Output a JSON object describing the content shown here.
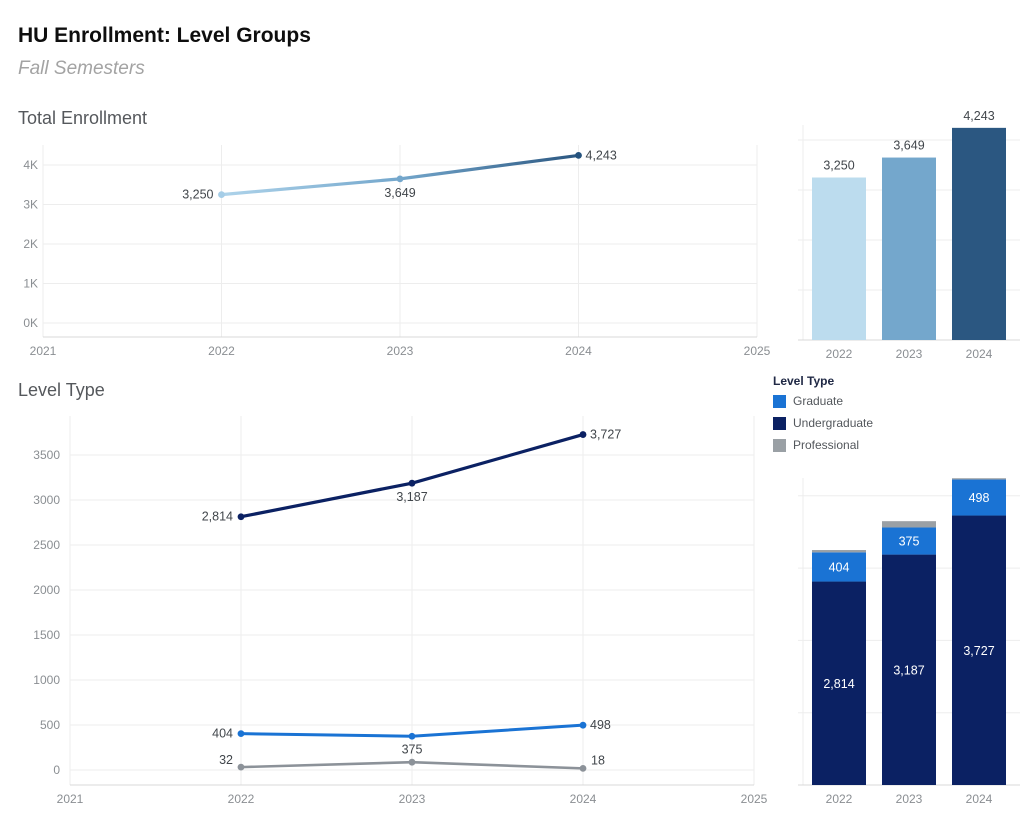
{
  "header": {
    "title": "HU Enrollment: Level Groups",
    "subtitle": "Fall Semesters"
  },
  "worksheets": {
    "total_title": "Total Enrollment",
    "level_title": "Level Type"
  },
  "legend": {
    "title": "Level Type",
    "items": [
      {
        "label": "Graduate",
        "color": "#1a73d4"
      },
      {
        "label": "Undergraduate",
        "color": "#0b2163"
      },
      {
        "label": "Professional",
        "color": "#9aa0a5"
      }
    ]
  },
  "colors": {
    "year_2022": "#bcdcee",
    "year_2023": "#74a7cc",
    "year_2024": "#2b5781",
    "graduate": "#1a73d4",
    "undergraduate": "#0b2163",
    "professional_line": "#8c9299",
    "professional_swatch": "#9aa0a5"
  },
  "chart_data": [
    {
      "id": "total-line",
      "type": "line",
      "title": "Total Enrollment",
      "x": [
        2022,
        2023,
        2024
      ],
      "series": [
        {
          "name": "Total Enrollment",
          "values": [
            3250,
            3649,
            4243
          ],
          "labels": [
            "3,250",
            "3,649",
            "4,243"
          ],
          "gradient": [
            "#aed3ea",
            "#74a7cc",
            "#2b5781"
          ],
          "point_colors": [
            "#a5cde7",
            "#74a7cc",
            "#24527d"
          ]
        }
      ],
      "xlim": [
        2021,
        2025
      ],
      "xticks": [
        "2021",
        "2022",
        "2023",
        "2024",
        "2025"
      ],
      "ylim": [
        0,
        4750
      ],
      "ytick_values": [
        0,
        1000,
        2000,
        3000,
        4000
      ],
      "ytick_labels": [
        "0K",
        "1K",
        "2K",
        "3K",
        "4K"
      ],
      "grid": true,
      "legend_position": "none"
    },
    {
      "id": "total-bar",
      "type": "bar",
      "categories": [
        "2022",
        "2023",
        "2024"
      ],
      "values": [
        3250,
        3649,
        4243
      ],
      "labels": [
        "3,250",
        "3,649",
        "4,243"
      ],
      "bar_colors": [
        "#bcdcee",
        "#74a7cc",
        "#2b5781"
      ],
      "ylim": [
        0,
        4900
      ],
      "gridline_step": 1000,
      "grid": true
    },
    {
      "id": "level-line",
      "type": "line",
      "title": "Level Type",
      "x": [
        2022,
        2023,
        2024
      ],
      "series": [
        {
          "name": "Undergraduate",
          "color": "#0b2163",
          "values": [
            2814,
            3187,
            3727
          ],
          "labels": [
            "2,814",
            "3,187",
            "3,727"
          ]
        },
        {
          "name": "Graduate",
          "color": "#1a73d4",
          "values": [
            404,
            375,
            498
          ],
          "labels": [
            "404",
            "375",
            "498"
          ]
        },
        {
          "name": "Professional",
          "color": "#8c9299",
          "values": [
            32,
            87,
            18
          ],
          "labels": [
            "32",
            "",
            "18"
          ]
        }
      ],
      "xlim": [
        2021,
        2025
      ],
      "xticks": [
        "2021",
        "2022",
        "2023",
        "2024",
        "2025"
      ],
      "ylim": [
        0,
        4000
      ],
      "ytick_values": [
        0,
        500,
        1000,
        1500,
        2000,
        2500,
        3000,
        3500
      ],
      "ytick_labels": [
        "0",
        "500",
        "1000",
        "1500",
        "2000",
        "2500",
        "3000",
        "3500"
      ],
      "grid": true,
      "legend_position": "right"
    },
    {
      "id": "level-stacked",
      "type": "stacked-bar",
      "categories": [
        "2022",
        "2023",
        "2024"
      ],
      "series": [
        {
          "name": "Undergraduate",
          "color": "#0b2163",
          "values": [
            2814,
            3187,
            3727
          ],
          "labels": [
            "2,814",
            "3,187",
            "3,727"
          ]
        },
        {
          "name": "Graduate",
          "color": "#1a73d4",
          "values": [
            404,
            375,
            498
          ],
          "labels": [
            "404",
            "375",
            "498"
          ]
        },
        {
          "name": "Professional",
          "color": "#9aa0a5",
          "values": [
            32,
            87,
            18
          ],
          "labels": [
            "",
            "",
            ""
          ]
        }
      ],
      "ylim": [
        0,
        4500
      ],
      "gridline_step": 1000,
      "grid": true
    }
  ]
}
